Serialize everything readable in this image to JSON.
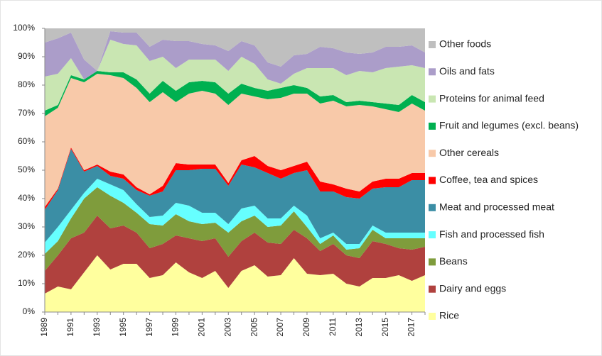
{
  "chart_data": {
    "type": "stacked_area",
    "x": [
      1989,
      1990,
      1991,
      1992,
      1993,
      1994,
      1995,
      1996,
      1997,
      1998,
      1999,
      2000,
      2001,
      2002,
      2003,
      2004,
      2005,
      2006,
      2007,
      2008,
      2009,
      2010,
      2011,
      2012,
      2013,
      2014,
      2015,
      2016,
      2017,
      2018
    ],
    "xlim": [
      1989,
      2018
    ],
    "xticks": [
      1989,
      1991,
      1993,
      1995,
      1997,
      1999,
      2001,
      2003,
      2005,
      2007,
      2009,
      2011,
      2013,
      2015,
      2017
    ],
    "ylim": [
      0,
      100
    ],
    "yticks": [
      {
        "value": 0,
        "label": "0%"
      },
      {
        "value": 10,
        "label": "10%"
      },
      {
        "value": 20,
        "label": "20%"
      },
      {
        "value": 30,
        "label": "30%"
      },
      {
        "value": 40,
        "label": "40%"
      },
      {
        "value": 50,
        "label": "50%"
      },
      {
        "value": 60,
        "label": "60%"
      },
      {
        "value": 70,
        "label": "70%"
      },
      {
        "value": 80,
        "label": "80%"
      },
      {
        "value": 90,
        "label": "90%"
      },
      {
        "value": 100,
        "label": "100%"
      }
    ],
    "grid": false,
    "legend": "right",
    "series": [
      {
        "name": "Rice",
        "color": "#ffff9e",
        "values": [
          6.5,
          9,
          8,
          14,
          20,
          15,
          17,
          17,
          12,
          13,
          17.5,
          14,
          12,
          14.5,
          8.5,
          14.5,
          16.5,
          12.5,
          13,
          19,
          13.5,
          13,
          13.5,
          10,
          9,
          12,
          12,
          13,
          11,
          13
        ]
      },
      {
        "name": "Dairy and eggs",
        "color": "#b0413e",
        "values": [
          8,
          11,
          18,
          14,
          14,
          14.5,
          13.5,
          11,
          10.5,
          11,
          9.5,
          12,
          13,
          11.5,
          11,
          10.5,
          11.5,
          12,
          11,
          10,
          12.5,
          8.5,
          10.5,
          10,
          10,
          13,
          12,
          9.5,
          11,
          10
        ]
      },
      {
        "name": "Beans",
        "color": "#7f9c3c",
        "values": [
          6,
          5,
          7,
          12,
          10,
          11.5,
          8,
          7,
          8.5,
          6.5,
          7.5,
          6,
          6,
          5.5,
          8.5,
          7,
          6,
          5.5,
          6.5,
          6.5,
          4,
          2.5,
          3,
          2,
          3.5,
          4,
          2,
          3.5,
          4,
          3
        ]
      },
      {
        "name": "Fish and processed fish",
        "color": "#66ffff",
        "values": [
          4,
          5,
          3,
          2,
          3,
          4,
          4.5,
          3,
          2.5,
          3.5,
          4,
          5.5,
          4,
          3.5,
          3,
          4.5,
          3.5,
          3,
          2.5,
          2,
          4,
          2,
          1,
          2,
          1.5,
          1.5,
          2,
          2,
          2,
          2
        ]
      },
      {
        "name": "Meat and processed meat",
        "color": "#3b8ea5",
        "values": [
          11.5,
          13,
          21.5,
          7.5,
          4.5,
          3,
          4,
          5,
          7.5,
          8.5,
          11.5,
          12.5,
          15.5,
          15.5,
          13.5,
          15.5,
          13.5,
          16,
          14,
          11.5,
          16,
          16.5,
          14.5,
          16.5,
          16,
          13,
          16,
          16,
          18.5,
          18.5
        ]
      },
      {
        "name": "Coffee, tea and spices",
        "color": "#ff0000",
        "values": [
          1,
          0.5,
          0.5,
          0.5,
          0.5,
          1.5,
          1.5,
          1,
          0.5,
          2,
          2.5,
          2,
          1.5,
          1.5,
          1,
          1.5,
          4,
          2.5,
          3,
          2.5,
          3,
          3.5,
          2.5,
          3,
          2.5,
          2.5,
          3,
          3,
          2.5,
          2.5
        ]
      },
      {
        "name": "Other cereals",
        "color": "#f8c9a9",
        "values": [
          32,
          28.5,
          24.5,
          31,
          32,
          34,
          34,
          35,
          32.5,
          33,
          21.5,
          25,
          26,
          25,
          27.5,
          23.5,
          21,
          23.5,
          25.5,
          25.5,
          24,
          27.5,
          29.5,
          29,
          30.5,
          26.5,
          24.5,
          23.5,
          24.5,
          22
        ]
      },
      {
        "name": "Fruit and legumes (excl. beans)",
        "color": "#00b050",
        "values": [
          2,
          1,
          1,
          1,
          1,
          1,
          2,
          3,
          3,
          4,
          4,
          4,
          3.5,
          4,
          4,
          3.5,
          3,
          3,
          3.5,
          3,
          2,
          2.5,
          2,
          1.5,
          1.5,
          1.5,
          2,
          2.5,
          3,
          3
        ]
      },
      {
        "name": "Proteins for animal feed",
        "color": "#c9e6b2",
        "values": [
          12,
          11,
          6,
          0,
          0,
          11.5,
          10,
          12,
          11.5,
          8.5,
          8,
          8,
          7.5,
          8,
          8,
          9.5,
          8.5,
          4,
          1.5,
          4,
          7,
          10,
          9.5,
          9.5,
          10.5,
          10.5,
          12.5,
          13.5,
          10.5,
          12
        ]
      },
      {
        "name": "Oils and fats",
        "color": "#ab9dc9",
        "values": [
          12,
          12.5,
          9,
          7,
          0,
          3,
          4,
          4.5,
          5,
          6,
          9.5,
          6.5,
          5.5,
          5,
          7,
          5.5,
          6.5,
          6,
          6,
          6.5,
          5,
          7.5,
          7,
          8,
          6,
          7,
          7.5,
          7,
          7,
          5.5
        ]
      },
      {
        "name": "Other foods",
        "color": "#bfbfbf",
        "values": [
          5,
          3.5,
          1.5,
          11,
          15,
          1,
          1.5,
          1.5,
          6.5,
          4,
          4.5,
          4.5,
          5.5,
          6,
          8,
          4.5,
          6,
          12,
          13.5,
          9.5,
          9,
          6.5,
          7,
          8.5,
          9,
          8.5,
          6.5,
          6.5,
          6,
          8.5
        ]
      }
    ]
  }
}
